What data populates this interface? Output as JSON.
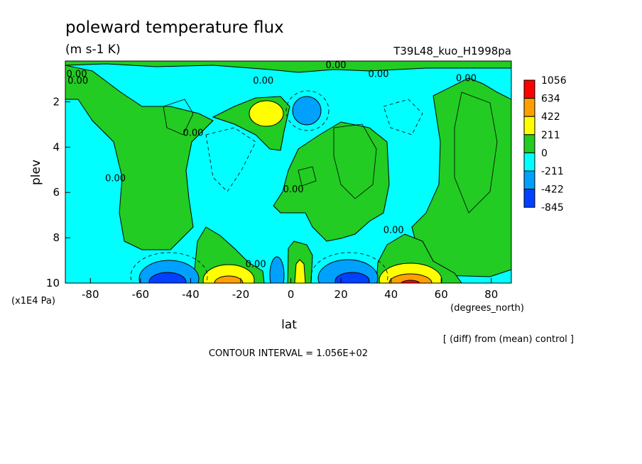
{
  "chart_data": {
    "type": "heatmap",
    "title": "poleward temperature flux",
    "units": "(m s-1 K)",
    "experiment": "T39L48_kuo_H1998pa",
    "xlabel": "lat",
    "x_units": "(degrees_north)",
    "ylabel": "plev",
    "y_units": "(x1E4 Pa)",
    "xlim": [
      -90,
      88
    ],
    "ylim": [
      10,
      0.2
    ],
    "x_ticks": [
      {
        "v": -80,
        "label": "-80"
      },
      {
        "v": -60,
        "label": "-60"
      },
      {
        "v": -40,
        "label": "-40"
      },
      {
        "v": -20,
        "label": "-20"
      },
      {
        "v": 0,
        "label": "0"
      },
      {
        "v": 20,
        "label": "20"
      },
      {
        "v": 40,
        "label": "40"
      },
      {
        "v": 60,
        "label": "60"
      },
      {
        "v": 80,
        "label": "80"
      }
    ],
    "y_ticks": [
      {
        "v": 2,
        "label": "2"
      },
      {
        "v": 4,
        "label": "4"
      },
      {
        "v": 6,
        "label": "6"
      },
      {
        "v": 8,
        "label": "8"
      },
      {
        "v": 10,
        "label": "10"
      }
    ],
    "colorbar": {
      "levels": [
        "1056",
        "634",
        "422",
        "211",
        "0",
        "-211",
        "-422",
        "-845"
      ],
      "colors": [
        "#ff0000",
        "#ffa000",
        "#ffff00",
        "#22cc22",
        "#00ffff",
        "#00a0ff",
        "#0040ff"
      ]
    },
    "contour_labels": [
      {
        "text": "0.00",
        "lat": -87,
        "p": 0.9
      },
      {
        "text": "0.00",
        "lat": -85,
        "p": 1.2
      },
      {
        "text": "0.00",
        "lat": -70,
        "p": 5.5
      },
      {
        "text": "0.00",
        "lat": -39,
        "p": 3.5
      },
      {
        "text": "0.00",
        "lat": -11,
        "p": 1.2
      },
      {
        "text": "0.00",
        "lat": 18,
        "p": 0.2
      },
      {
        "text": "0.00",
        "lat": 35,
        "p": 0.9
      },
      {
        "text": "0.00",
        "lat": 70,
        "p": 1.1
      },
      {
        "text": "0.00",
        "lat": 1,
        "p": 6.0
      },
      {
        "text": "0.00",
        "lat": 41,
        "p": 7.8
      },
      {
        "text": "0.00",
        "lat": -14,
        "p": 9.3
      }
    ],
    "features": [
      {
        "name": "strong negative cell",
        "lat": -47,
        "p": 9.8,
        "value": -845
      },
      {
        "name": "strong positive cell",
        "lat": -25,
        "p": 9.7,
        "value": 422
      },
      {
        "name": "negative cell",
        "lat": -5,
        "p": 9.6,
        "value": -422
      },
      {
        "name": "positive cell",
        "lat": 5,
        "p": 9.5,
        "value": 422
      },
      {
        "name": "negative cell",
        "lat": 26,
        "p": 9.7,
        "value": -422
      },
      {
        "name": "strong positive cell",
        "lat": 46,
        "p": 9.8,
        "value": 634
      },
      {
        "name": "upper positive cell",
        "lat": -7,
        "p": 2.3,
        "value": 422
      },
      {
        "name": "upper negative cell",
        "lat": 8,
        "p": 2.4,
        "value": -422
      }
    ]
  },
  "footer": {
    "note": "[ (diff) from (mean) control ]",
    "contour_interval": "CONTOUR INTERVAL = 1.056E+02"
  }
}
